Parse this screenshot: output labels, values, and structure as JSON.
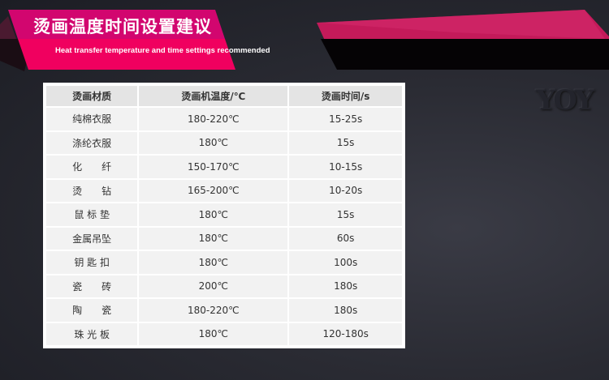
{
  "header": {
    "title": "烫画温度时间设置建议",
    "subtitle": "Heat transfer temperature and time settings recommended"
  },
  "logo": "YOY",
  "table": {
    "columns": [
      "烫画材质",
      "烫画机温度/℃",
      "烫画时间/s"
    ],
    "rows": [
      [
        "纯棉衣服",
        "180-220℃",
        "15-25s"
      ],
      [
        "涤纶衣服",
        "180℃",
        "15s"
      ],
      [
        "化　　纤",
        "150-170℃",
        "10-15s"
      ],
      [
        "烫　　钻",
        "165-200℃",
        "10-20s"
      ],
      [
        "鼠 标 垫",
        "180℃",
        "15s"
      ],
      [
        "金属吊坠",
        "180℃",
        "60s"
      ],
      [
        "钥 匙 扣",
        "180℃",
        "100s"
      ],
      [
        "瓷　　砖",
        "200℃",
        "180s"
      ],
      [
        "陶　　瓷",
        "180-220℃",
        "180s"
      ],
      [
        "珠 光 板",
        "180℃",
        "120-180s"
      ]
    ]
  },
  "colors": {
    "accent": "#f0005f",
    "accent_dark": "#d4006f",
    "background": "#2a2b33"
  }
}
